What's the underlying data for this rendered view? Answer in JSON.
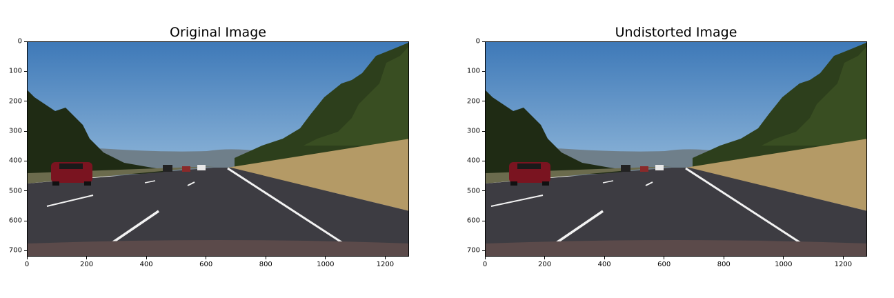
{
  "figure": {
    "panels": [
      {
        "id": "original",
        "title": "Original Image",
        "lane_shift": 0
      },
      {
        "id": "undistorted",
        "title": "Undistorted Image",
        "lane_shift": -20
      }
    ],
    "x_ticks": [
      "0",
      "200",
      "400",
      "600",
      "800",
      "1000",
      "1200"
    ],
    "y_ticks": [
      "0",
      "100",
      "200",
      "300",
      "400",
      "500",
      "600",
      "700"
    ],
    "image_size": {
      "width": 1280,
      "height": 720
    },
    "colors": {
      "sky_top": "#3e79b8",
      "sky_bottom": "#8fb6d9",
      "road": "#3d3c42",
      "grass": "#b49a66",
      "trees": "#1f2b14",
      "lane_line": "#f2f2f2",
      "car": "#7a1420",
      "hood": "#5b4a4a"
    }
  }
}
